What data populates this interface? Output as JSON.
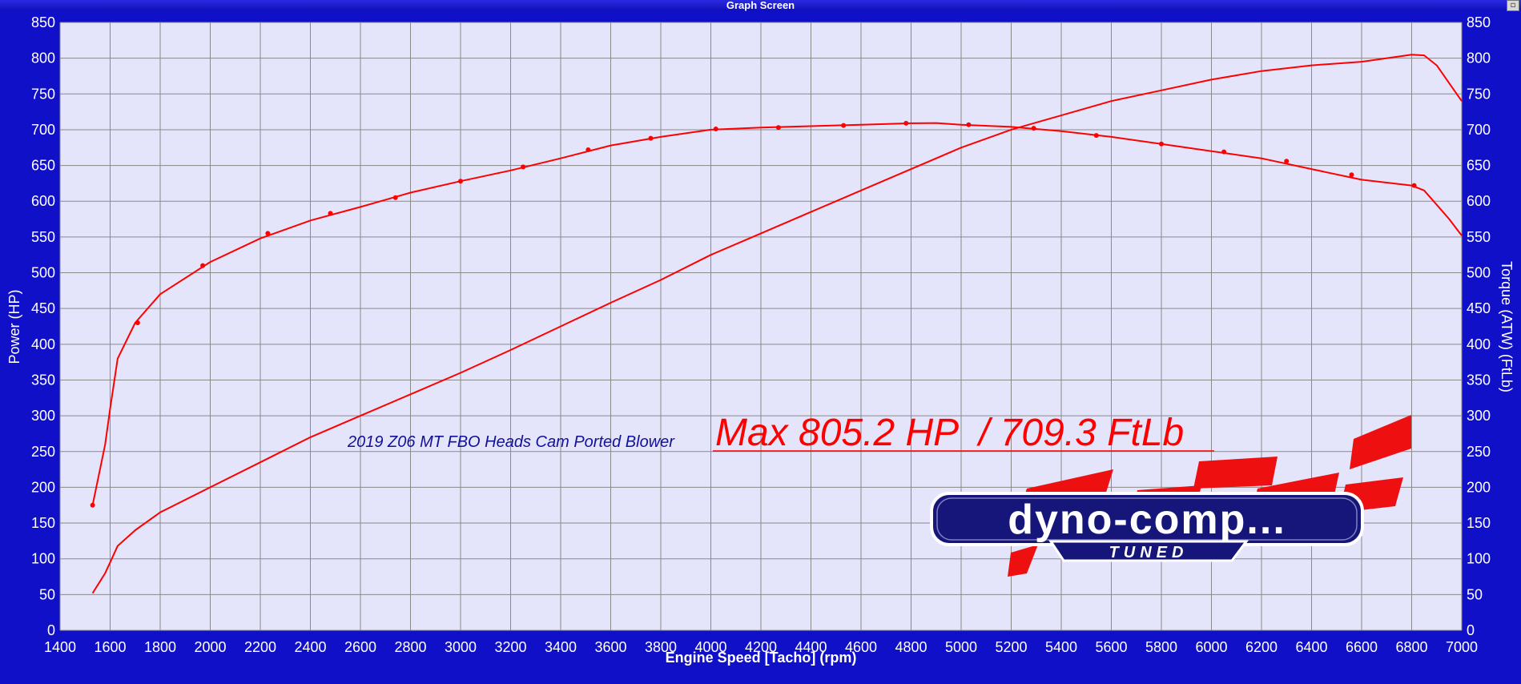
{
  "window": {
    "title": "Graph Screen"
  },
  "colors": {
    "frame": "#1010c8",
    "plot_bg": "#e4e4fb",
    "grid": "#8a8a8a",
    "series": "#ff0000",
    "note": "#111199"
  },
  "logo": {
    "text": "dyno-comp...",
    "subtext": "TUNED"
  },
  "annotations": {
    "description": "2019 Z06 MT FBO Heads Cam Ported Blower",
    "max": "Max 805.2 HP  / 709.3 FtLb"
  },
  "chart_data": {
    "type": "line",
    "xlabel": "Engine Speed [Tacho] (rpm)",
    "ylabel": "Power (HP)",
    "y2label": "Torque (ATW) (FtLb)",
    "xlim": [
      1400,
      7000
    ],
    "ylim": [
      0,
      850
    ],
    "y2lim": [
      0,
      850
    ],
    "xticks": [
      1400,
      1600,
      1800,
      2000,
      2200,
      2400,
      2600,
      2800,
      3000,
      3200,
      3400,
      3600,
      3800,
      4000,
      4200,
      4400,
      4600,
      4800,
      5000,
      5200,
      5400,
      5600,
      5800,
      6000,
      6200,
      6400,
      6600,
      6800,
      7000
    ],
    "yticks": [
      0,
      50,
      100,
      150,
      200,
      250,
      300,
      350,
      400,
      450,
      500,
      550,
      600,
      650,
      700,
      750,
      800,
      850
    ],
    "grid": true,
    "series": [
      {
        "name": "",
        "axis": "left",
        "x": [
          1530,
          1580,
          1600,
          1630,
          1700,
          1800,
          2000,
          2200,
          2400,
          2600,
          2800,
          3000,
          3200,
          3400,
          3600,
          3800,
          4000,
          4200,
          4400,
          4600,
          4800,
          5000,
          5200,
          5400,
          5600,
          5800,
          6000,
          6200,
          6400,
          6600,
          6800,
          6850,
          6900,
          6950,
          7000
        ],
        "y": [
          52,
          80,
          95,
          118,
          140,
          165,
          200,
          235,
          270,
          300,
          330,
          360,
          392,
          425,
          458,
          490,
          525,
          555,
          585,
          615,
          645,
          675,
          700,
          720,
          740,
          755,
          770,
          782,
          790,
          795,
          805,
          804,
          790,
          765,
          740
        ]
      },
      {
        "name": "",
        "axis": "right",
        "x": [
          1530,
          1580,
          1600,
          1630,
          1700,
          1800,
          2000,
          2200,
          2400,
          2600,
          2800,
          3000,
          3200,
          3400,
          3600,
          3800,
          4000,
          4200,
          4400,
          4600,
          4800,
          4900,
          5000,
          5200,
          5400,
          5600,
          5800,
          6000,
          6200,
          6400,
          6600,
          6800,
          6850,
          6900,
          6950,
          7000
        ],
        "y": [
          175,
          260,
          310,
          380,
          430,
          470,
          515,
          548,
          573,
          592,
          612,
          628,
          643,
          660,
          678,
          690,
          700,
          703,
          705,
          707,
          709,
          709.3,
          707,
          704,
          698,
          690,
          680,
          670,
          660,
          645,
          630,
          622,
          615,
          595,
          575,
          552
        ]
      }
    ],
    "markers": [
      {
        "x": [
          1530,
          1710,
          1970,
          2230,
          2480,
          2740,
          3000,
          3250,
          3510,
          3760,
          4020,
          4270,
          4530,
          4780,
          5030,
          5290,
          5540,
          5800,
          6050,
          6300,
          6560,
          6810
        ],
        "y": [
          175,
          430,
          510,
          555,
          583,
          605,
          628,
          648,
          672,
          688,
          701,
          703,
          706,
          709,
          707,
          702,
          692,
          680,
          669,
          656,
          637,
          622
        ]
      }
    ]
  }
}
